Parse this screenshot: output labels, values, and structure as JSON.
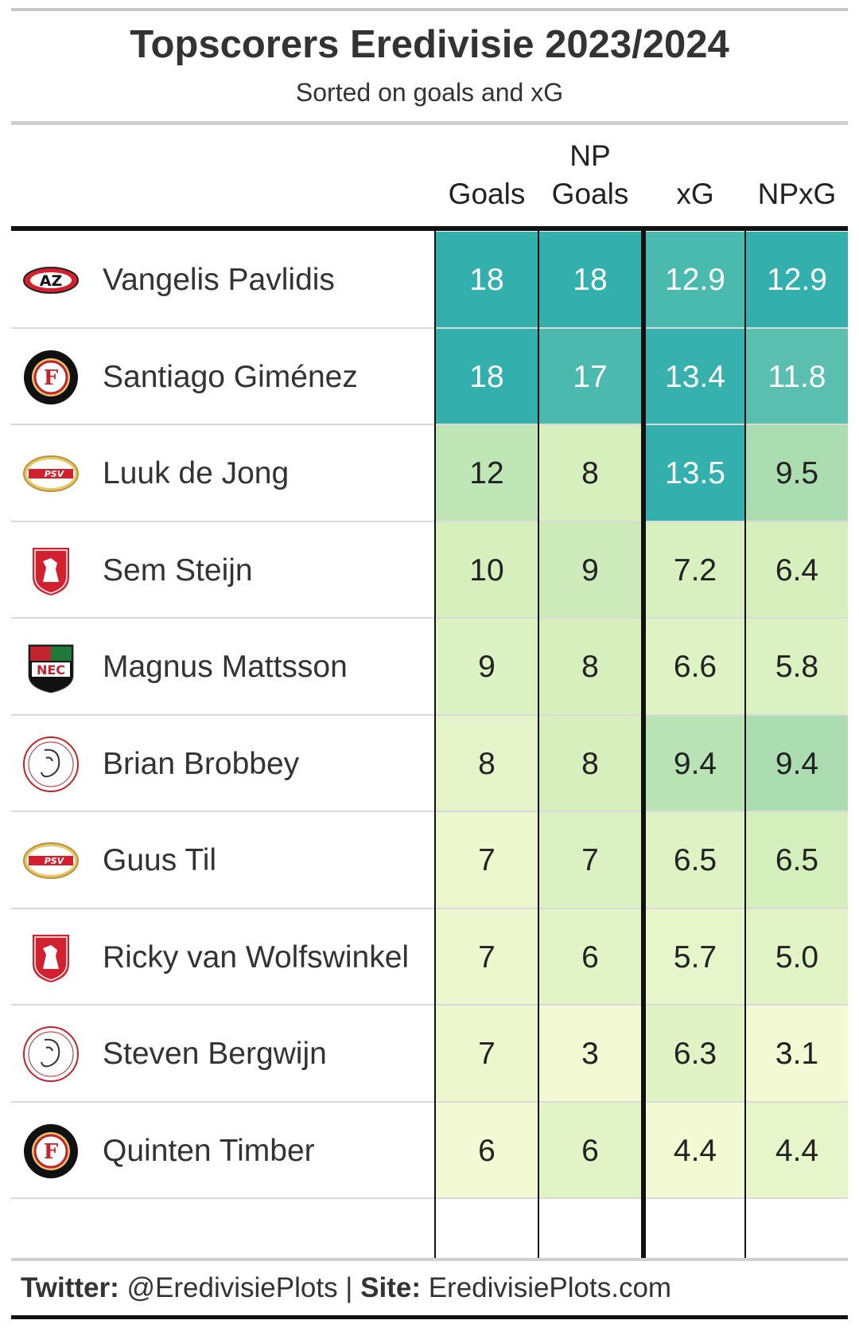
{
  "header": {
    "title": "Topscorers Eredivisie 2023/2024",
    "subtitle": "Sorted on goals and xG"
  },
  "columns": [
    {
      "key": "goals",
      "label_top": "",
      "label_bottom": "Goals"
    },
    {
      "key": "np_goals",
      "label_top": "NP",
      "label_bottom": "Goals"
    },
    {
      "key": "xg",
      "label_top": "",
      "label_bottom": "xG"
    },
    {
      "key": "npxg",
      "label_top": "",
      "label_bottom": "NPxG"
    }
  ],
  "chart_data": {
    "type": "table",
    "title": "Topscorers Eredivisie 2023/2024",
    "subtitle": "Sorted on goals and xG",
    "columns": [
      "Goals",
      "NP Goals",
      "xG",
      "NPxG"
    ],
    "rows": [
      {
        "player": "Vangelis Pavlidis",
        "club_icon": "az-logo-icon",
        "goals": 18,
        "np_goals": 18,
        "xg": "12.9",
        "npxg": "12.9"
      },
      {
        "player": "Santiago Giménez",
        "club_icon": "feyenoord-logo-icon",
        "goals": 18,
        "np_goals": 17,
        "xg": "13.4",
        "npxg": "11.8"
      },
      {
        "player": "Luuk de Jong",
        "club_icon": "psv-logo-icon",
        "goals": 12,
        "np_goals": 8,
        "xg": "13.5",
        "npxg": "9.5"
      },
      {
        "player": "Sem Steijn",
        "club_icon": "fc-twente-logo-icon",
        "goals": 10,
        "np_goals": 9,
        "xg": "7.2",
        "npxg": "6.4"
      },
      {
        "player": "Magnus Mattsson",
        "club_icon": "nec-logo-icon",
        "goals": 9,
        "np_goals": 8,
        "xg": "6.6",
        "npxg": "5.8"
      },
      {
        "player": "Brian Brobbey",
        "club_icon": "ajax-logo-icon",
        "goals": 8,
        "np_goals": 8,
        "xg": "9.4",
        "npxg": "9.4"
      },
      {
        "player": "Guus Til",
        "club_icon": "psv-logo-icon",
        "goals": 7,
        "np_goals": 7,
        "xg": "6.5",
        "npxg": "6.5"
      },
      {
        "player": "Ricky van Wolfswinkel",
        "club_icon": "fc-twente-logo-icon",
        "goals": 7,
        "np_goals": 6,
        "xg": "5.7",
        "npxg": "5.0"
      },
      {
        "player": "Steven Bergwijn",
        "club_icon": "ajax-logo-icon",
        "goals": 7,
        "np_goals": 3,
        "xg": "6.3",
        "npxg": "3.1"
      },
      {
        "player": "Quinten Timber",
        "club_icon": "feyenoord-logo-icon",
        "goals": 6,
        "np_goals": 6,
        "xg": "4.4",
        "npxg": "4.4"
      }
    ],
    "color_scale": [
      "#f3f9d3",
      "#d6efbd",
      "#a9dcb0",
      "#33b0ae"
    ]
  },
  "footer": {
    "twitter_label": "Twitter:",
    "twitter_handle": " @EredivisiePlots | ",
    "site_label": "Site:",
    "site_url": " EredivisiePlots.com"
  }
}
